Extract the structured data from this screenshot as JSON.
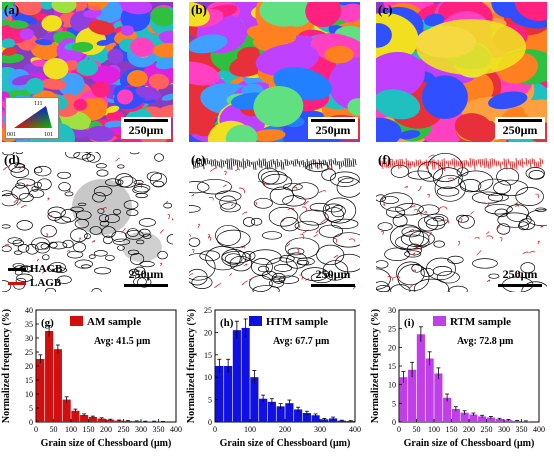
{
  "scale_text": "250μm",
  "ebsd_panels": [
    {
      "label": "(a)",
      "key": "a"
    },
    {
      "label": "(b)",
      "key": "b"
    },
    {
      "label": "(c)",
      "key": "c"
    }
  ],
  "gb_panels": [
    {
      "label": "(d)"
    },
    {
      "label": "(e)"
    },
    {
      "label": "(f)"
    }
  ],
  "ipf_key": {
    "corner_top": "111",
    "corner_left": "001",
    "corner_right": "101"
  },
  "gb_legend": {
    "hagb": "HAGB",
    "lagb": "LAGB",
    "hagb_color": "#000000",
    "lagb_color": "#d01010"
  },
  "chart_data": [
    {
      "type": "bar",
      "panel_label": "(g)",
      "legend": "AM sample",
      "avg_text": "Avg: 41.5 μm",
      "color": "#d01010",
      "xlabel": "Grain size of Chessboard (μm)",
      "ylabel": "Normalized frequency (%)",
      "xlim": [
        0,
        400
      ],
      "ylim": [
        0,
        40
      ],
      "xticks": [
        0,
        50,
        100,
        150,
        200,
        250,
        300,
        350,
        400
      ],
      "yticks": [
        0,
        5,
        10,
        15,
        20,
        25,
        30,
        35,
        40
      ],
      "x": [
        12.5,
        37.5,
        62.5,
        87.5,
        112.5,
        137.5,
        162.5,
        187.5,
        212.5,
        237.5,
        262.5,
        287.5,
        312.5,
        337.5,
        362.5
      ],
      "values": [
        22.5,
        32.5,
        26,
        8,
        4,
        2.5,
        1.8,
        1.2,
        0.8,
        0.5,
        0.4,
        0.3,
        0.2,
        0.2,
        0.1
      ],
      "errors": [
        1.5,
        2.0,
        1.5,
        1.0,
        0.6,
        0.4,
        0.3,
        0.3,
        0.2,
        0.2,
        0.1,
        0.1,
        0.1,
        0.1,
        0.1
      ]
    },
    {
      "type": "bar",
      "panel_label": "(h)",
      "legend": "HTM sample",
      "avg_text": "Avg: 67.7 μm",
      "color": "#1010e0",
      "xlabel": "Grain size of Chessboard (μm)",
      "ylabel": "Normalized frequency (%)",
      "xlim": [
        0,
        400
      ],
      "ylim": [
        0,
        25
      ],
      "xticks": [
        0,
        100,
        200,
        300,
        400
      ],
      "yticks": [
        0,
        5,
        10,
        15,
        20,
        25
      ],
      "x": [
        12.5,
        37.5,
        62.5,
        87.5,
        112.5,
        137.5,
        162.5,
        187.5,
        212.5,
        237.5,
        262.5,
        287.5,
        312.5,
        337.5,
        362.5,
        387.5
      ],
      "values": [
        12.5,
        12.5,
        20.5,
        21,
        10,
        5.2,
        4.5,
        3.5,
        4.2,
        2.8,
        2.0,
        1.5,
        0.6,
        0.8,
        0.3,
        0.2
      ],
      "errors": [
        1.5,
        1.5,
        2.0,
        2.0,
        1.5,
        0.8,
        0.7,
        0.6,
        0.7,
        0.5,
        0.4,
        0.3,
        0.2,
        0.3,
        0.1,
        0.1
      ]
    },
    {
      "type": "bar",
      "panel_label": "(i)",
      "legend": "RTM sample",
      "avg_text": "Avg: 72.8 μm",
      "color": "#c040e8",
      "xlabel": "Grain size of Chessboard (μm)",
      "ylabel": "Normalized frequency (%)",
      "xlim": [
        0,
        400
      ],
      "ylim": [
        0,
        30
      ],
      "xticks": [
        0,
        50,
        100,
        150,
        200,
        250,
        300,
        350,
        400
      ],
      "yticks": [
        0,
        5,
        10,
        15,
        20,
        25,
        30
      ],
      "x": [
        12.5,
        37.5,
        62.5,
        87.5,
        112.5,
        137.5,
        162.5,
        187.5,
        212.5,
        237.5,
        262.5,
        287.5,
        312.5,
        337.5,
        362.5
      ],
      "values": [
        12,
        14,
        23.5,
        17,
        13,
        6.5,
        3.5,
        2.5,
        2.0,
        1.5,
        1.2,
        0.8,
        0.5,
        0.3,
        0.2
      ],
      "errors": [
        1.5,
        2.0,
        2.0,
        1.8,
        1.5,
        1.0,
        0.6,
        0.5,
        0.4,
        0.3,
        0.3,
        0.2,
        0.2,
        0.1,
        0.1
      ]
    }
  ]
}
